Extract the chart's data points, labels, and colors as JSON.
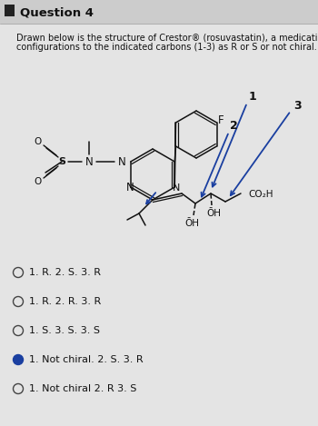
{
  "title": "Question 4",
  "header_line1": "Drawn below is the structure of Crestor® (rosuvastatin), a medicatio",
  "header_line2": "configurations to the indicated carbons (1-3) as R or S or not chiral.",
  "answer_choices": [
    "1. R. 2. S. 3. R",
    "1. R. 2. R. 3. R",
    "1. S. 3. S. 3. S",
    "1. Not chiral. 2. S. 3. R",
    "1. Not chiral 2. R 3. S"
  ],
  "selected_index": 3,
  "bg_color": "#e4e4e4",
  "title_bg": "#cccccc",
  "text_color": "#111111",
  "selected_color": "#1a3fa0",
  "blue_arrow": "#1a3fa0"
}
